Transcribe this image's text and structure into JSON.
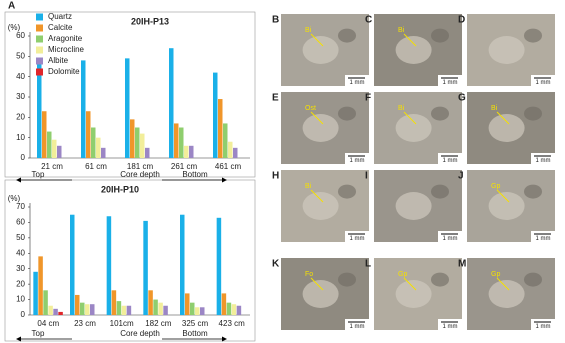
{
  "panel_label": "A",
  "chart_data": [
    {
      "type": "bar",
      "title": "20IH-P13",
      "y_label": "(%)",
      "categories": [
        "21 cm",
        "61 cm",
        "181 cm",
        "261 cm",
        "461 cm"
      ],
      "series": [
        {
          "name": "Quartz",
          "color": "#1ab0e8",
          "values": [
            49,
            48,
            49,
            54,
            42
          ]
        },
        {
          "name": "Calcite",
          "color": "#f0962a",
          "values": [
            23,
            23,
            19,
            17,
            29
          ]
        },
        {
          "name": "Aragonite",
          "color": "#8fce6e",
          "values": [
            13,
            15,
            15,
            15,
            17
          ]
        },
        {
          "name": "Microcline",
          "color": "#f2ee9a",
          "values": [
            9,
            10,
            12,
            6,
            8
          ]
        },
        {
          "name": "Albite",
          "color": "#9b86c5",
          "values": [
            6,
            5,
            5,
            6,
            5
          ]
        },
        {
          "name": "Dolomite",
          "color": "#e0262a",
          "values": [
            0,
            0,
            0,
            0,
            0
          ]
        }
      ],
      "ylim": [
        0,
        60
      ],
      "yticks": [
        0,
        10,
        20,
        30,
        40,
        50,
        60
      ],
      "legend": "upper left",
      "x_annotations": [
        "Top",
        "Core  depth",
        "Bottom"
      ]
    },
    {
      "type": "bar",
      "title": "20IH-P10",
      "y_label": "(%)",
      "categories": [
        "04 cm",
        "23 cm",
        "101cm",
        "182 cm",
        "325 cm",
        "423 cm"
      ],
      "series": [
        {
          "name": "Quartz",
          "color": "#1ab0e8",
          "values": [
            28,
            65,
            64,
            61,
            65,
            63
          ]
        },
        {
          "name": "Calcite",
          "color": "#f0962a",
          "values": [
            38,
            13,
            16,
            16,
            14,
            14
          ]
        },
        {
          "name": "Aragonite",
          "color": "#8fce6e",
          "values": [
            16,
            8,
            9,
            10,
            8,
            8
          ]
        },
        {
          "name": "Microcline",
          "color": "#f2ee9a",
          "values": [
            6,
            7,
            6,
            8,
            5,
            7
          ]
        },
        {
          "name": "Albite",
          "color": "#9b86c5",
          "values": [
            4,
            7,
            6,
            6,
            5,
            6
          ]
        },
        {
          "name": "Dolomite",
          "color": "#e0262a",
          "values": [
            2,
            0,
            0,
            0,
            0,
            0
          ]
        }
      ],
      "ylim": [
        0,
        70
      ],
      "yticks": [
        0,
        10,
        20,
        30,
        40,
        50,
        60,
        70
      ],
      "x_annotations": [
        "Top",
        "Core  depth",
        "Bottom"
      ]
    }
  ],
  "photos": [
    {
      "label": "B",
      "scale": "1 mm",
      "tags": [
        "Bi"
      ]
    },
    {
      "label": "C",
      "scale": "1 mm",
      "tags": [
        "Bi"
      ]
    },
    {
      "label": "D",
      "scale": "1 mm",
      "tags": []
    },
    {
      "label": "E",
      "scale": "1 mm",
      "tags": [
        "Ost"
      ]
    },
    {
      "label": "F",
      "scale": "1 mm",
      "tags": [
        "Bi"
      ]
    },
    {
      "label": "G",
      "scale": "1 mm",
      "tags": [
        "Bi"
      ]
    },
    {
      "label": "H",
      "scale": "1 mm",
      "tags": [
        "Bi"
      ]
    },
    {
      "label": "I",
      "scale": "1 mm",
      "tags": []
    },
    {
      "label": "J",
      "scale": "1 mm",
      "tags": [
        "Gp"
      ]
    },
    {
      "label": "K",
      "scale": "1 mm",
      "tags": [
        "Fo"
      ]
    },
    {
      "label": "L",
      "scale": "1 mm",
      "tags": [
        "Gp"
      ]
    },
    {
      "label": "M",
      "scale": "1 mm",
      "tags": [
        "Gp"
      ]
    }
  ]
}
